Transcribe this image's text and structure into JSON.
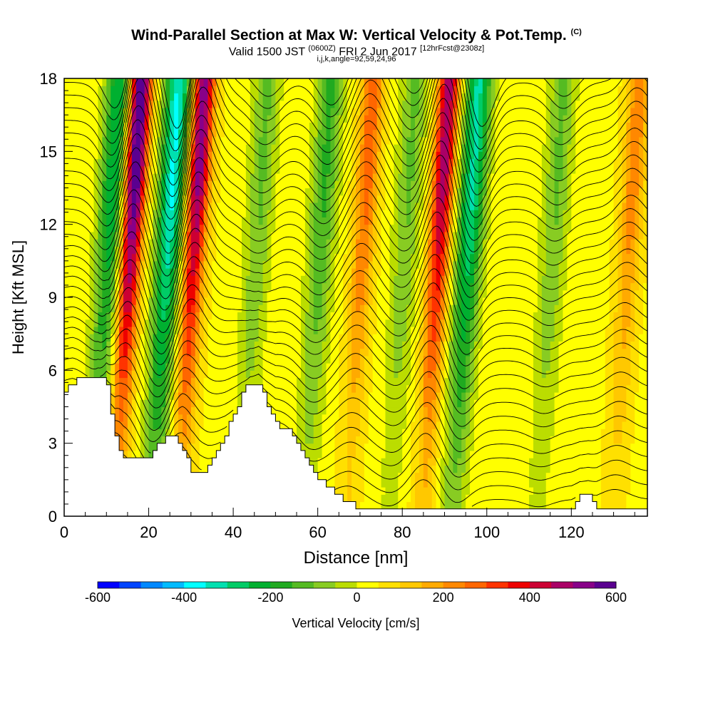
{
  "header": {
    "title": "Wind-Parallel Section at Max W: Vertical Velocity & Pot.Temp.",
    "copyright": "(C)",
    "valid_prefix": "Valid 1500 JST",
    "valid_utc": "(0600Z)",
    "valid_date": "FRI 2 Jun 2017",
    "forecast": "[12hrFcst@2308z]",
    "section_params": "i,j,k,angle=92,59,24,96"
  },
  "chart_data": {
    "type": "heatmap",
    "xlabel": "Distance [nm]",
    "ylabel": "Height [Kft MSL]",
    "xlim": [
      0,
      138
    ],
    "ylim": [
      0,
      18
    ],
    "x_ticks": [
      "0",
      "20",
      "40",
      "60",
      "80",
      "100",
      "120"
    ],
    "x_tick_values": [
      0,
      20,
      40,
      60,
      80,
      100,
      120
    ],
    "y_ticks": [
      "0",
      "3",
      "6",
      "9",
      "12",
      "15",
      "18"
    ],
    "y_tick_values": [
      0,
      3,
      6,
      9,
      12,
      15,
      18
    ],
    "colorbar": {
      "label": "Vertical Velocity [cm/s]",
      "min": -600,
      "max": 600,
      "tick_labels": [
        "-600",
        "-400",
        "-200",
        "0",
        "200",
        "400",
        "600"
      ],
      "tick_values": [
        -600,
        -400,
        -200,
        0,
        200,
        400,
        600
      ],
      "colors": [
        "#0000ff",
        "#0044ff",
        "#0088ff",
        "#00bbff",
        "#00ffff",
        "#00e0b0",
        "#00cc66",
        "#00b030",
        "#20aa20",
        "#55bb22",
        "#88cc22",
        "#bbdd00",
        "#ffff00",
        "#ffe000",
        "#ffc800",
        "#ffaa00",
        "#ff8800",
        "#ff6600",
        "#ff3300",
        "#ee0000",
        "#cc0033",
        "#aa0066",
        "#880088",
        "#5a0090"
      ]
    },
    "terrain_profile": {
      "x": [
        0,
        2,
        8,
        10,
        12,
        14,
        16,
        18,
        20,
        22,
        24,
        26,
        28,
        30,
        32,
        34,
        36,
        38,
        40,
        42,
        44,
        46,
        48,
        50,
        52,
        54,
        56,
        58,
        60,
        62,
        64,
        66,
        70,
        80,
        90,
        100,
        110,
        115,
        118,
        120,
        122,
        124,
        126,
        130,
        138
      ],
      "y": [
        5.2,
        5.5,
        5.8,
        5.3,
        3.2,
        2.3,
        2.3,
        2.3,
        2.3,
        2.9,
        3.2,
        3.2,
        2.8,
        1.9,
        1.7,
        2.0,
        2.6,
        3.3,
        4.2,
        5.0,
        5.5,
        5.5,
        4.6,
        3.8,
        3.6,
        3.3,
        2.8,
        2.1,
        1.6,
        1.2,
        0.9,
        0.6,
        0.3,
        0.3,
        0.3,
        0.3,
        0.3,
        0.3,
        0.3,
        0.3,
        1.0,
        1.0,
        0.3,
        0.3,
        0.3
      ]
    },
    "updrafts": [
      {
        "x": 15,
        "w": 600
      },
      {
        "x": 30,
        "w": 500
      },
      {
        "x": 70,
        "w": 250
      },
      {
        "x": 88,
        "w": 450
      },
      {
        "x": 133,
        "w": 200
      }
    ],
    "downdrafts": [
      {
        "x": 10,
        "w": -300
      },
      {
        "x": 24,
        "w": -400
      },
      {
        "x": 45,
        "w": -150
      },
      {
        "x": 60,
        "w": -200
      },
      {
        "x": 80,
        "w": -150
      },
      {
        "x": 95,
        "w": -350
      },
      {
        "x": 115,
        "w": -150
      }
    ]
  }
}
